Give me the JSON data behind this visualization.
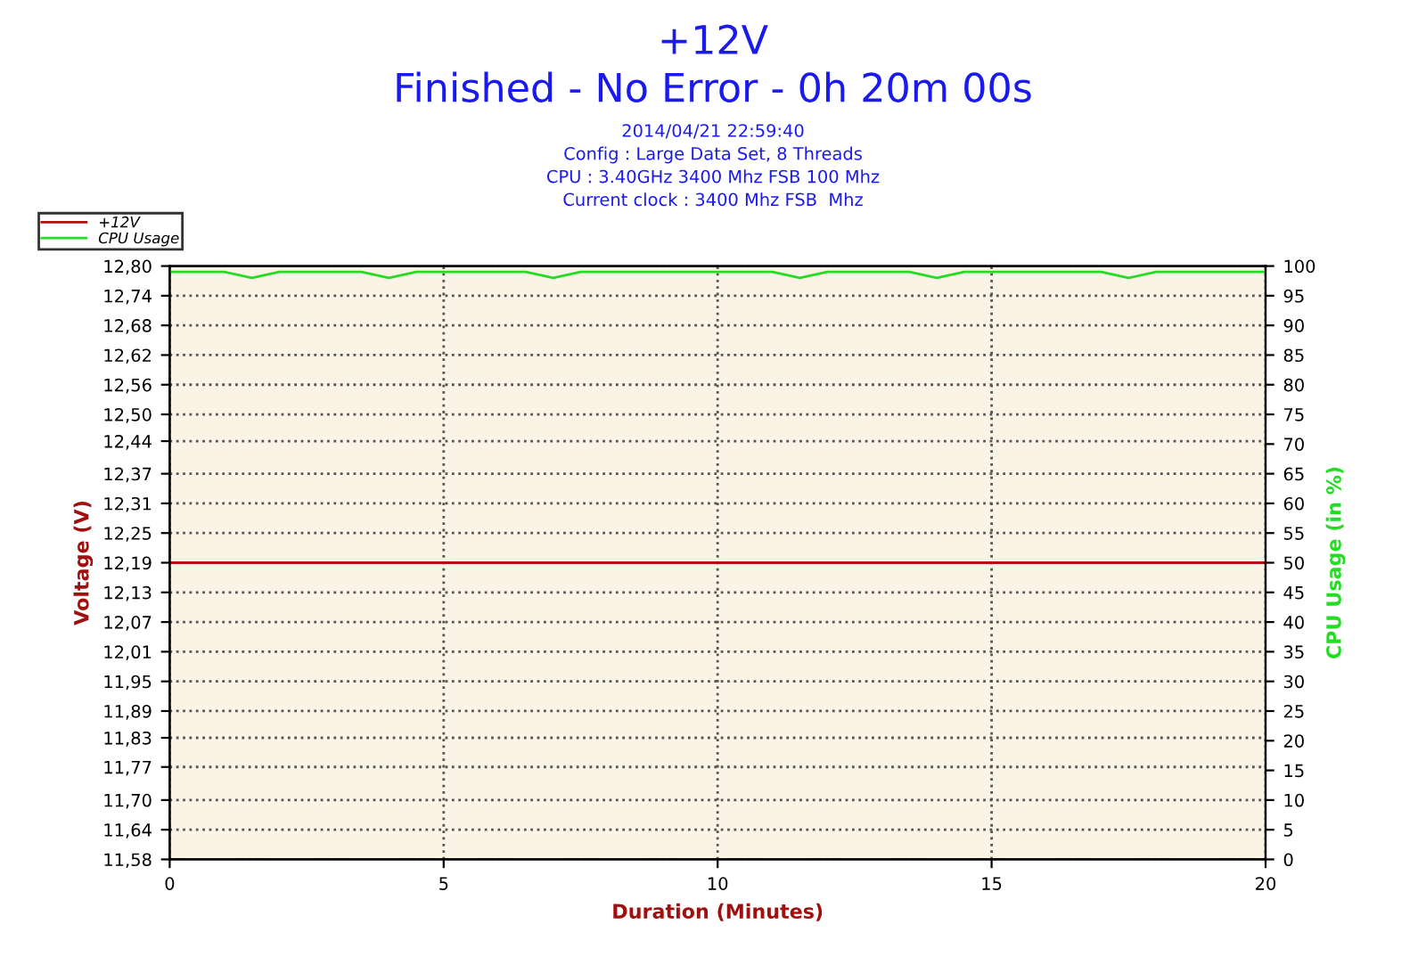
{
  "chart_data": {
    "type": "line",
    "title": "+12V",
    "subtitle": "Finished - No Error - 0h 20m 00s",
    "annotations": [
      "2014/04/21 22:59:40",
      "Config : Large Data Set, 8 Threads",
      "CPU : 3.40GHz 3400 Mhz FSB 100 Mhz",
      "Current clock : 3400 Mhz FSB  Mhz"
    ],
    "xlabel": "Duration (Minutes)",
    "ylabel": "Voltage (V)",
    "y2label": "CPU Usage (in %)",
    "x": [
      0,
      0.5,
      1,
      1.5,
      2,
      2.5,
      3,
      3.5,
      4,
      4.5,
      5,
      5.5,
      6,
      6.5,
      7,
      7.5,
      8,
      8.5,
      9,
      9.5,
      10,
      10.5,
      11,
      11.5,
      12,
      12.5,
      13,
      13.5,
      14,
      14.5,
      15,
      15.5,
      16,
      16.5,
      17,
      17.5,
      18,
      18.5,
      19,
      19.5,
      20
    ],
    "series": [
      {
        "name": "+12V",
        "color": "#b01010",
        "values": [
          12.19,
          12.19,
          12.19,
          12.19,
          12.19,
          12.19,
          12.19,
          12.19,
          12.19,
          12.19,
          12.19,
          12.19,
          12.19,
          12.19,
          12.19,
          12.19,
          12.19,
          12.19,
          12.19,
          12.19,
          12.19,
          12.19,
          12.19,
          12.19,
          12.19,
          12.19,
          12.19,
          12.19,
          12.19,
          12.19,
          12.19,
          12.19,
          12.19,
          12.19,
          12.19,
          12.19,
          12.19,
          12.19,
          12.19,
          12.19,
          12.19
        ]
      },
      {
        "name": "CPU Usage",
        "color": "#22dd22",
        "axis": "y2",
        "values": [
          99,
          99,
          99,
          98,
          99,
          99,
          99,
          99,
          98,
          99,
          99,
          99,
          99,
          99,
          98,
          99,
          99,
          99,
          99,
          99,
          99,
          99,
          99,
          98,
          99,
          99,
          99,
          99,
          98,
          99,
          99,
          99,
          99,
          99,
          99,
          98,
          99,
          99,
          99,
          99,
          99
        ]
      }
    ],
    "xlim": [
      0,
      20
    ],
    "xticks": [
      0,
      5,
      10,
      15,
      20
    ],
    "ylim": [
      11.58,
      12.8
    ],
    "yticks": [
      {
        "value": 11.58,
        "label": "11,58"
      },
      {
        "value": 11.641,
        "label": "11,64"
      },
      {
        "value": 11.702,
        "label": "11,70"
      },
      {
        "value": 11.77,
        "label": "11,77"
      },
      {
        "value": 11.83,
        "label": "11,83"
      },
      {
        "value": 11.885,
        "label": "11,89"
      },
      {
        "value": 11.946,
        "label": "11,95"
      },
      {
        "value": 12.007,
        "label": "12,01"
      },
      {
        "value": 12.068,
        "label": "12,07"
      },
      {
        "value": 12.129,
        "label": "12,13"
      },
      {
        "value": 12.19,
        "label": "12,19"
      },
      {
        "value": 12.251,
        "label": "12,25"
      },
      {
        "value": 12.312,
        "label": "12,31"
      },
      {
        "value": 12.373,
        "label": "12,37"
      },
      {
        "value": 12.44,
        "label": "12,44"
      },
      {
        "value": 12.495,
        "label": "12,50"
      },
      {
        "value": 12.556,
        "label": "12,56"
      },
      {
        "value": 12.617,
        "label": "12,62"
      },
      {
        "value": 12.678,
        "label": "12,68"
      },
      {
        "value": 12.739,
        "label": "12,74"
      },
      {
        "value": 12.8,
        "label": "12,80"
      }
    ],
    "y2lim": [
      0,
      100
    ],
    "y2ticks": [
      0,
      5,
      10,
      15,
      20,
      25,
      30,
      35,
      40,
      45,
      50,
      55,
      60,
      65,
      70,
      75,
      80,
      85,
      90,
      95,
      100
    ],
    "grid": true,
    "legend": "top left",
    "marker": "none",
    "line_style": "solid"
  }
}
